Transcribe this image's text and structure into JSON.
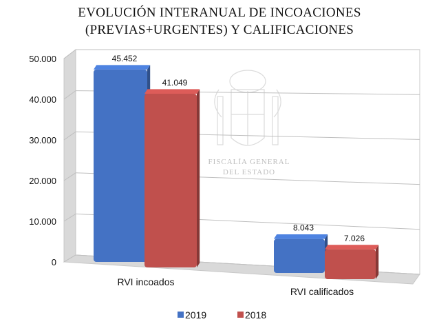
{
  "chart_data": {
    "type": "bar",
    "title": "EVOLUCIÓN INTERANUAL DE INCOACIONES",
    "subtitle": "(PREVIAS+URGENTES) Y CALIFICACIONES",
    "categories": [
      "RVI incoados",
      "RVI calificados"
    ],
    "series": [
      {
        "name": "2019",
        "values": [
          45452,
          8043
        ],
        "labels": [
          "45.452",
          "8.043"
        ],
        "color": "#4472c4"
      },
      {
        "name": "2018",
        "values": [
          41049,
          7026
        ],
        "labels": [
          "41.049",
          "7.026"
        ],
        "color": "#c0504d"
      }
    ],
    "ylim": [
      0,
      50000
    ],
    "yticks": [
      0,
      10000,
      20000,
      30000,
      40000,
      50000
    ],
    "ytick_labels": [
      "0",
      "10.000",
      "20.000",
      "30.000",
      "40.000",
      "50.000"
    ],
    "grid": true,
    "legend_position": "bottom",
    "style": "3d-column"
  },
  "watermark": {
    "line1": "FISCALÍA GENERAL",
    "line2": "DEL ESTADO"
  }
}
